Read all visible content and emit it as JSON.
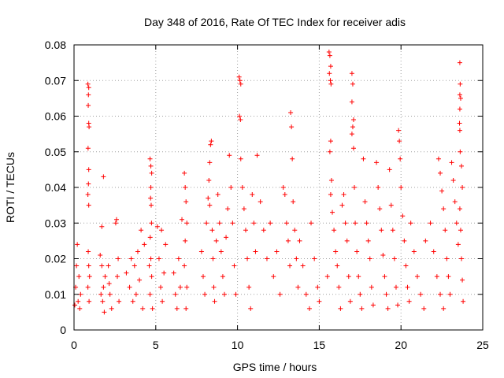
{
  "chart_data": {
    "type": "scatter",
    "title": "Day 348 of 2016, Rate Of TEC Index for receiver adis",
    "xlabel": "GPS time / hours",
    "ylabel": "ROTI / TECUs",
    "xlim": [
      0,
      25
    ],
    "ylim": [
      0,
      0.08
    ],
    "grid": true,
    "marker": "+",
    "color": "#ff0000",
    "x_ticks": [
      0,
      5,
      10,
      15,
      20,
      25
    ],
    "x_tick_labels": [
      "0",
      "5",
      "10",
      "15",
      "20",
      "25"
    ],
    "y_ticks": [
      0,
      0.01,
      0.02,
      0.03,
      0.04,
      0.05,
      0.06,
      0.07,
      0.08
    ],
    "y_tick_labels": [
      "0",
      "0.01",
      "0.02",
      "0.03",
      "0.04",
      "0.05",
      "0.06",
      "0.07",
      "0.08"
    ],
    "series": [
      {
        "name": "ROTI",
        "points": [
          [
            0.1,
            0.012
          ],
          [
            0.2,
            0.024
          ],
          [
            0.25,
            0.008
          ],
          [
            0.3,
            0.015
          ],
          [
            0.35,
            0.006
          ],
          [
            0.15,
            0.018
          ],
          [
            0.4,
            0.01
          ],
          [
            0.05,
            0.007
          ],
          [
            0.85,
            0.069
          ],
          [
            0.9,
            0.068
          ],
          [
            0.88,
            0.066
          ],
          [
            0.87,
            0.063
          ],
          [
            0.9,
            0.058
          ],
          [
            0.92,
            0.057
          ],
          [
            0.86,
            0.051
          ],
          [
            0.9,
            0.045
          ],
          [
            0.88,
            0.041
          ],
          [
            0.85,
            0.038
          ],
          [
            0.9,
            0.035
          ],
          [
            0.87,
            0.022
          ],
          [
            0.9,
            0.018
          ],
          [
            0.85,
            0.012
          ],
          [
            0.92,
            0.008
          ],
          [
            0.95,
            0.015
          ],
          [
            1.6,
            0.021
          ],
          [
            1.7,
            0.018
          ],
          [
            1.8,
            0.012
          ],
          [
            1.75,
            0.008
          ],
          [
            1.85,
            0.005
          ],
          [
            1.9,
            0.015
          ],
          [
            1.65,
            0.01
          ],
          [
            1.7,
            0.029
          ],
          [
            1.8,
            0.043
          ],
          [
            2.1,
            0.018
          ],
          [
            2.2,
            0.01
          ],
          [
            2.3,
            0.006
          ],
          [
            2.15,
            0.013
          ],
          [
            2.55,
            0.03
          ],
          [
            2.6,
            0.031
          ],
          [
            2.7,
            0.02
          ],
          [
            2.65,
            0.015
          ],
          [
            2.75,
            0.008
          ],
          [
            3.2,
            0.016
          ],
          [
            3.4,
            0.012
          ],
          [
            3.5,
            0.02
          ],
          [
            3.6,
            0.008
          ],
          [
            3.7,
            0.018
          ],
          [
            3.8,
            0.01
          ],
          [
            3.9,
            0.022
          ],
          [
            4.0,
            0.014
          ],
          [
            4.1,
            0.028
          ],
          [
            4.2,
            0.006
          ],
          [
            4.3,
            0.024
          ],
          [
            4.65,
            0.048
          ],
          [
            4.7,
            0.046
          ],
          [
            4.75,
            0.044
          ],
          [
            4.7,
            0.04
          ],
          [
            4.68,
            0.037
          ],
          [
            4.72,
            0.035
          ],
          [
            4.74,
            0.03
          ],
          [
            4.66,
            0.026
          ],
          [
            4.7,
            0.02
          ],
          [
            4.75,
            0.015
          ],
          [
            4.65,
            0.01
          ],
          [
            4.8,
            0.006
          ],
          [
            4.6,
            0.018
          ],
          [
            5.1,
            0.029
          ],
          [
            5.2,
            0.02
          ],
          [
            5.3,
            0.012
          ],
          [
            5.4,
            0.008
          ],
          [
            5.5,
            0.016
          ],
          [
            5.6,
            0.024
          ],
          [
            5.35,
            0.028
          ],
          [
            6.1,
            0.016
          ],
          [
            6.2,
            0.01
          ],
          [
            6.3,
            0.006
          ],
          [
            6.4,
            0.02
          ],
          [
            6.5,
            0.012
          ],
          [
            6.6,
            0.031
          ],
          [
            6.75,
            0.044
          ],
          [
            6.8,
            0.04
          ],
          [
            6.85,
            0.036
          ],
          [
            6.9,
            0.03
          ],
          [
            6.8,
            0.025
          ],
          [
            6.75,
            0.018
          ],
          [
            6.9,
            0.012
          ],
          [
            6.85,
            0.006
          ],
          [
            7.8,
            0.022
          ],
          [
            7.9,
            0.015
          ],
          [
            8.0,
            0.01
          ],
          [
            8.1,
            0.03
          ],
          [
            8.2,
            0.037
          ],
          [
            8.25,
            0.042
          ],
          [
            8.3,
            0.047
          ],
          [
            8.35,
            0.052
          ],
          [
            8.4,
            0.053
          ],
          [
            8.3,
            0.035
          ],
          [
            8.45,
            0.028
          ],
          [
            8.5,
            0.02
          ],
          [
            8.55,
            0.012
          ],
          [
            8.6,
            0.008
          ],
          [
            8.7,
            0.025
          ],
          [
            8.8,
            0.038
          ],
          [
            8.9,
            0.03
          ],
          [
            9.0,
            0.022
          ],
          [
            9.1,
            0.015
          ],
          [
            9.2,
            0.01
          ],
          [
            9.3,
            0.026
          ],
          [
            9.4,
            0.034
          ],
          [
            9.5,
            0.049
          ],
          [
            9.6,
            0.04
          ],
          [
            9.7,
            0.03
          ],
          [
            9.8,
            0.018
          ],
          [
            9.9,
            0.01
          ],
          [
            10.1,
            0.071
          ],
          [
            10.15,
            0.07
          ],
          [
            10.2,
            0.069
          ],
          [
            10.12,
            0.06
          ],
          [
            10.18,
            0.059
          ],
          [
            10.2,
            0.048
          ],
          [
            10.3,
            0.04
          ],
          [
            10.4,
            0.034
          ],
          [
            10.5,
            0.028
          ],
          [
            10.6,
            0.02
          ],
          [
            10.7,
            0.012
          ],
          [
            10.8,
            0.006
          ],
          [
            10.9,
            0.038
          ],
          [
            11.0,
            0.03
          ],
          [
            11.1,
            0.022
          ],
          [
            11.2,
            0.049
          ],
          [
            11.4,
            0.036
          ],
          [
            11.6,
            0.028
          ],
          [
            11.8,
            0.02
          ],
          [
            12.0,
            0.03
          ],
          [
            12.2,
            0.015
          ],
          [
            12.4,
            0.022
          ],
          [
            12.6,
            0.01
          ],
          [
            12.8,
            0.04
          ],
          [
            12.9,
            0.038
          ],
          [
            13.0,
            0.03
          ],
          [
            13.1,
            0.025
          ],
          [
            13.2,
            0.018
          ],
          [
            13.25,
            0.061
          ],
          [
            13.3,
            0.057
          ],
          [
            13.35,
            0.048
          ],
          [
            13.4,
            0.036
          ],
          [
            13.5,
            0.028
          ],
          [
            13.6,
            0.02
          ],
          [
            13.7,
            0.012
          ],
          [
            13.8,
            0.025
          ],
          [
            14.0,
            0.018
          ],
          [
            14.2,
            0.01
          ],
          [
            14.4,
            0.006
          ],
          [
            14.5,
            0.03
          ],
          [
            14.7,
            0.02
          ],
          [
            14.9,
            0.012
          ],
          [
            15.0,
            0.008
          ],
          [
            15.6,
            0.078
          ],
          [
            15.65,
            0.077
          ],
          [
            15.7,
            0.074
          ],
          [
            15.62,
            0.072
          ],
          [
            15.68,
            0.07
          ],
          [
            15.72,
            0.069
          ],
          [
            15.7,
            0.053
          ],
          [
            15.65,
            0.05
          ],
          [
            15.75,
            0.042
          ],
          [
            15.7,
            0.038
          ],
          [
            15.8,
            0.033
          ],
          [
            15.9,
            0.028
          ],
          [
            16.0,
            0.022
          ],
          [
            16.1,
            0.018
          ],
          [
            16.2,
            0.012
          ],
          [
            16.3,
            0.006
          ],
          [
            15.5,
            0.015
          ],
          [
            16.4,
            0.035
          ],
          [
            16.5,
            0.038
          ],
          [
            16.6,
            0.03
          ],
          [
            16.7,
            0.025
          ],
          [
            16.8,
            0.015
          ],
          [
            16.9,
            0.008
          ],
          [
            17.0,
            0.072
          ],
          [
            17.05,
            0.069
          ],
          [
            17.0,
            0.064
          ],
          [
            17.1,
            0.059
          ],
          [
            17.05,
            0.057
          ],
          [
            17.0,
            0.055
          ],
          [
            17.1,
            0.051
          ],
          [
            17.15,
            0.04
          ],
          [
            17.2,
            0.03
          ],
          [
            17.3,
            0.022
          ],
          [
            17.4,
            0.015
          ],
          [
            17.5,
            0.01
          ],
          [
            17.6,
            0.006
          ],
          [
            17.7,
            0.048
          ],
          [
            17.8,
            0.036
          ],
          [
            17.9,
            0.03
          ],
          [
            18.0,
            0.025
          ],
          [
            18.1,
            0.02
          ],
          [
            18.2,
            0.012
          ],
          [
            18.3,
            0.007
          ],
          [
            18.5,
            0.047
          ],
          [
            18.6,
            0.04
          ],
          [
            18.7,
            0.034
          ],
          [
            18.8,
            0.028
          ],
          [
            18.9,
            0.021
          ],
          [
            19.0,
            0.015
          ],
          [
            19.1,
            0.01
          ],
          [
            19.2,
            0.006
          ],
          [
            19.3,
            0.045
          ],
          [
            19.4,
            0.035
          ],
          [
            19.5,
            0.028
          ],
          [
            19.6,
            0.02
          ],
          [
            19.7,
            0.012
          ],
          [
            19.8,
            0.007
          ],
          [
            19.85,
            0.056
          ],
          [
            19.9,
            0.053
          ],
          [
            19.95,
            0.048
          ],
          [
            20.0,
            0.04
          ],
          [
            20.1,
            0.032
          ],
          [
            20.2,
            0.025
          ],
          [
            20.3,
            0.018
          ],
          [
            20.4,
            0.012
          ],
          [
            20.5,
            0.008
          ],
          [
            20.6,
            0.03
          ],
          [
            20.8,
            0.022
          ],
          [
            21.0,
            0.015
          ],
          [
            21.2,
            0.01
          ],
          [
            21.4,
            0.006
          ],
          [
            21.5,
            0.025
          ],
          [
            21.8,
            0.03
          ],
          [
            22.0,
            0.022
          ],
          [
            22.2,
            0.015
          ],
          [
            22.4,
            0.01
          ],
          [
            22.6,
            0.006
          ],
          [
            22.3,
            0.048
          ],
          [
            22.4,
            0.044
          ],
          [
            22.5,
            0.039
          ],
          [
            22.6,
            0.034
          ],
          [
            22.7,
            0.028
          ],
          [
            22.8,
            0.02
          ],
          [
            22.9,
            0.015
          ],
          [
            23.0,
            0.01
          ],
          [
            23.1,
            0.047
          ],
          [
            23.2,
            0.042
          ],
          [
            23.3,
            0.036
          ],
          [
            23.4,
            0.03
          ],
          [
            23.5,
            0.024
          ],
          [
            23.6,
            0.075
          ],
          [
            23.62,
            0.069
          ],
          [
            23.6,
            0.066
          ],
          [
            23.65,
            0.065
          ],
          [
            23.6,
            0.062
          ],
          [
            23.58,
            0.058
          ],
          [
            23.6,
            0.056
          ],
          [
            23.62,
            0.05
          ],
          [
            23.7,
            0.046
          ],
          [
            23.75,
            0.04
          ],
          [
            23.6,
            0.034
          ],
          [
            23.65,
            0.028
          ],
          [
            23.7,
            0.02
          ],
          [
            23.75,
            0.014
          ],
          [
            23.8,
            0.008
          ]
        ]
      }
    ]
  }
}
